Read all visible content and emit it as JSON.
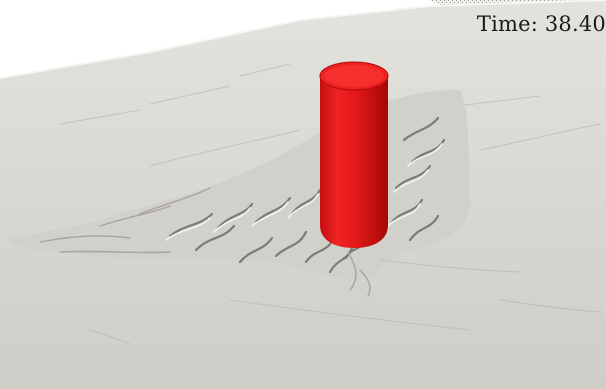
{
  "overlay": {
    "time_text": "Time: 38.40"
  },
  "colors": {
    "background": "#ffffff",
    "seabed": "#d8d6d0",
    "seabed_shadow": "#a8a69f",
    "pile": "#e21b1b",
    "pile_top": "#ff3a3a"
  },
  "objects": {
    "pile": "red-cylinder-pile",
    "terrain": "scoured-sand-bed"
  }
}
